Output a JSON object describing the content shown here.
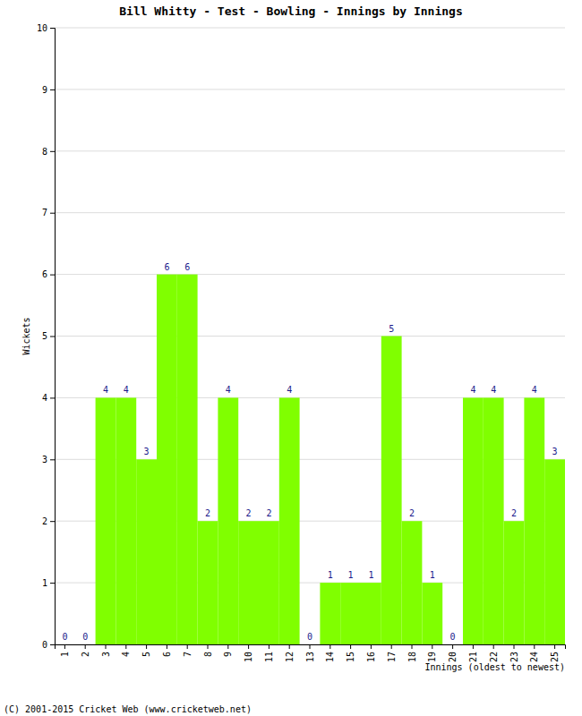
{
  "chart_data": {
    "type": "bar",
    "title": "Bill Whitty - Test - Bowling - Innings by Innings",
    "x_label": "Innings (oldest to newest)",
    "y_label": "Wickets",
    "annotations": [
      "(C) 2001-2015 Cricket Web (www.cricketweb.net)"
    ],
    "categories": [
      "1",
      "2",
      "3",
      "4",
      "5",
      "6",
      "7",
      "8",
      "9",
      "10",
      "11",
      "12",
      "13",
      "14",
      "15",
      "16",
      "17",
      "18",
      "19",
      "20",
      "21",
      "22",
      "23",
      "24",
      "25"
    ],
    "values": [
      0,
      0,
      4,
      4,
      3,
      6,
      6,
      2,
      4,
      2,
      2,
      4,
      0,
      1,
      1,
      1,
      5,
      2,
      1,
      0,
      4,
      4,
      2,
      4,
      3
    ],
    "color": "#80ff00",
    "ylim": [
      0,
      10
    ],
    "yticks": [
      0,
      1,
      2,
      3,
      4,
      5,
      6,
      7,
      8,
      9,
      10
    ],
    "grid": true,
    "data_labels": true
  }
}
